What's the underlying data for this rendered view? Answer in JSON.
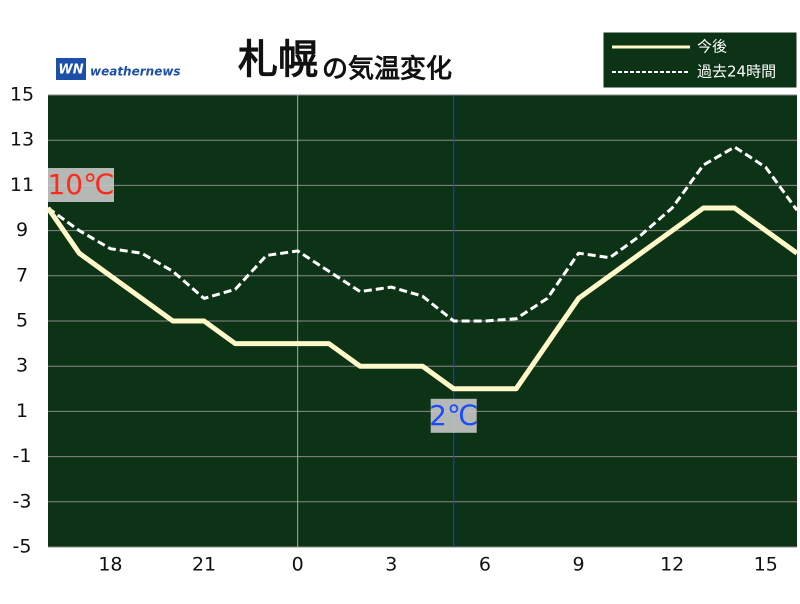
{
  "chart_data": {
    "type": "line",
    "title": {
      "main": "札幌",
      "sub": "の気温変化"
    },
    "logo": {
      "mark": "WN",
      "text": "weathernews"
    },
    "x": [
      16,
      17,
      18,
      19,
      20,
      21,
      22,
      23,
      24,
      25,
      26,
      27,
      28,
      29,
      30,
      31,
      32,
      33,
      34,
      35,
      36,
      37,
      38,
      39,
      40
    ],
    "series": [
      {
        "name": "今後",
        "color": "#fff8c8",
        "dashed": false,
        "values": [
          10,
          8,
          7,
          6,
          5,
          5,
          4,
          4,
          4,
          4,
          3,
          3,
          3,
          2,
          2,
          2,
          4,
          6,
          7,
          8,
          9,
          10,
          10,
          9,
          8
        ]
      },
      {
        "name": "過去24時間",
        "color": "#ffffff",
        "dashed": true,
        "values": [
          10,
          9,
          8.2,
          8,
          7.2,
          6,
          6.4,
          7.9,
          8.1,
          7.2,
          6.3,
          6.5,
          6.1,
          5,
          5,
          5.1,
          6,
          8,
          7.8,
          8.8,
          10,
          11.9,
          12.7,
          11.8,
          9.9
        ]
      }
    ],
    "xlim": [
      16,
      40
    ],
    "xticks": [
      18,
      21,
      {
        "value": 24,
        "label": "0"
      },
      {
        "value": 27,
        "label": "3"
      },
      {
        "value": 30,
        "label": "6"
      },
      {
        "value": 33,
        "label": "9"
      },
      {
        "value": 36,
        "label": "12"
      },
      {
        "value": 39,
        "label": "15"
      }
    ],
    "ylim": [
      -5,
      15
    ],
    "yticks": [
      -5,
      -3,
      -1,
      1,
      3,
      5,
      7,
      9,
      11,
      13,
      15
    ],
    "grid": true,
    "midnight": 24,
    "now": 29,
    "annotations": [
      {
        "text": "10℃",
        "x": 16,
        "y": 10,
        "color": "#ff2a1a"
      },
      {
        "text": "2℃",
        "x": 29,
        "y": 2,
        "color": "#1a4cff"
      }
    ],
    "legend": "top-right"
  }
}
